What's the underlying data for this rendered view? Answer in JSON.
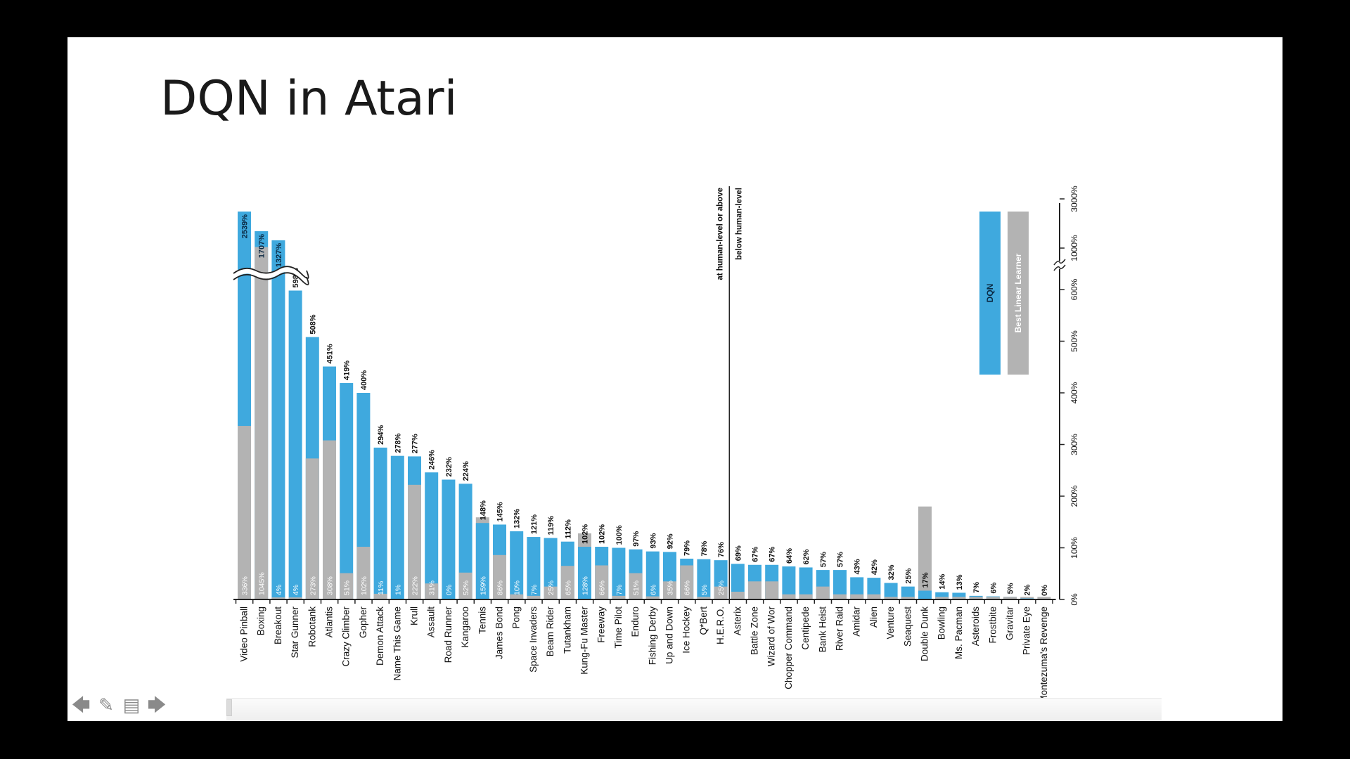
{
  "slide": {
    "title": "DQN in Atari"
  },
  "toolbar": {
    "prev_icon": "arrow-left-icon",
    "pen_icon": "pen-icon",
    "menu_icon": "menu-icon",
    "next_icon": "arrow-right-icon"
  },
  "colors": {
    "dqn": "#3fa9de",
    "linear": "#b3b3b3",
    "axis": "#222222",
    "text": "#111111"
  },
  "chart_data": {
    "type": "bar",
    "title": "",
    "orientation": "vertical-categories-rotated",
    "categories": [
      "Video Pinball",
      "Boxing",
      "Breakout",
      "Star Gunner",
      "Robotank",
      "Atlantis",
      "Crazy Climber",
      "Gopher",
      "Demon Attack",
      "Name This Game",
      "Krull",
      "Assault",
      "Road Runner",
      "Kangaroo",
      "Tennis",
      "James Bond",
      "Pong",
      "Space Invaders",
      "Beam Rider",
      "Tutankham",
      "Kung-Fu Master",
      "Freeway",
      "Time Pilot",
      "Enduro",
      "Fishing Derby",
      "Up and Down",
      "Ice Hockey",
      "Q*Bert",
      "H.E.R.O.",
      "Asterix",
      "Battle Zone",
      "Wizard of Wor",
      "Chopper Command",
      "Centipede",
      "Bank Heist",
      "River Raid",
      "Amidar",
      "Alien",
      "Venture",
      "Seaquest",
      "Double Dunk",
      "Bowling",
      "Ms. Pacman",
      "Asteroids",
      "Frostbite",
      "Gravitar",
      "Private Eye",
      "Montezuma's Revenge"
    ],
    "series": [
      {
        "name": "DQN",
        "values": [
          2539,
          1707,
          1327,
          598,
          508,
          451,
          419,
          400,
          294,
          278,
          277,
          246,
          232,
          224,
          148,
          145,
          132,
          121,
          119,
          112,
          102,
          102,
          100,
          97,
          93,
          92,
          79,
          78,
          76,
          69,
          67,
          67,
          64,
          62,
          57,
          57,
          43,
          42,
          32,
          25,
          17,
          14,
          13,
          7,
          6,
          5,
          2,
          0
        ],
        "labels": [
          "2539%",
          "1707%",
          "1327%",
          "598%",
          "508%",
          "451%",
          "419%",
          "400%",
          "294%",
          "278%",
          "277%",
          "246%",
          "232%",
          "224%",
          "148%",
          "145%",
          "132%",
          "121%",
          "119%",
          "112%",
          "102%",
          "102%",
          "100%",
          "97%",
          "93%",
          "92%",
          "79%",
          "78%",
          "76%",
          "69%",
          "67%",
          "67%",
          "64%",
          "62%",
          "57%",
          "57%",
          "43%",
          "42%",
          "32%",
          "25%",
          "17%",
          "14%",
          "13%",
          "7%",
          "6%",
          "5%",
          "2%",
          "0%"
        ]
      },
      {
        "name": "Best Linear Learner",
        "values": [
          336,
          1045,
          4,
          4,
          273,
          308,
          51,
          102,
          11,
          1,
          222,
          31,
          0,
          52,
          159,
          86,
          10,
          7,
          25,
          65,
          128,
          66,
          7,
          51,
          6,
          35,
          66,
          5,
          25,
          15,
          35,
          35,
          10,
          10,
          25,
          10,
          10,
          10,
          5,
          5,
          180,
          5,
          5,
          5,
          5,
          5,
          5,
          5
        ],
        "labels": [
          "336%",
          "1045%",
          "4%",
          "4%",
          "273%",
          "308%",
          "51%",
          "102%",
          "11%",
          "1%",
          "222%",
          "31%",
          "0%",
          "52%",
          "159%",
          "86%",
          "10%",
          "7%",
          "25%",
          "65%",
          "128%",
          "66%",
          "7%",
          "51%",
          "6%",
          "35%",
          "66%",
          "5%",
          "25%",
          "",
          "",
          "",
          "",
          "",
          "",
          "",
          "",
          "",
          "",
          "",
          "",
          "",
          "",
          "",
          "",
          "",
          "",
          ""
        ]
      }
    ],
    "ytick_labels": [
      "0%",
      "100%",
      "200%",
      "300%",
      "400%",
      "500%",
      "600%",
      "1000%",
      "3000%"
    ],
    "ytick_values": [
      0,
      100,
      200,
      300,
      400,
      500,
      600,
      1000,
      3000
    ],
    "axis_break_between": [
      600,
      1000
    ],
    "divider_labels": {
      "above": "at human-level or above",
      "below": "below human-level"
    },
    "divider_after_index": 28,
    "legend": [
      "DQN",
      "Best Linear Learner"
    ],
    "legend_position": "top-right"
  }
}
